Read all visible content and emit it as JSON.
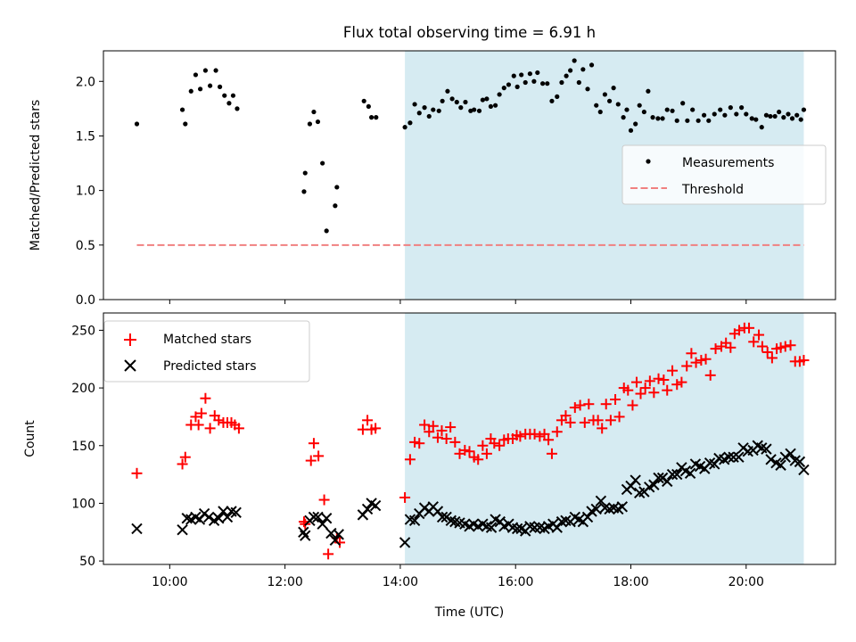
{
  "chart_data": [
    {
      "type": "scatter",
      "panel": "top",
      "title": "Flux total observing time = 6.91 h",
      "xlabel": "",
      "ylabel": "Matched/Predicted stars",
      "xlim": [
        8.85,
        21.55
      ],
      "ylim": [
        0,
        2.28
      ],
      "yticks": [
        0.0,
        0.5,
        1.0,
        1.5,
        2.0
      ],
      "ytick_labels": [
        "0.0",
        "0.5",
        "1.0",
        "1.5",
        "2.0"
      ],
      "shaded_interval": [
        14.08,
        21.0
      ],
      "legend": {
        "position": "right",
        "entries": [
          "Measurements",
          "Threshold"
        ]
      },
      "threshold": {
        "name": "Threshold",
        "value": 0.5,
        "x_range": [
          9.43,
          21.0
        ],
        "color": "#f08080"
      },
      "series": [
        {
          "name": "Measurements",
          "color": "#000000",
          "x": [
            9.43,
            10.22,
            10.27,
            10.37,
            10.45,
            10.53,
            10.62,
            10.7,
            10.8,
            10.87,
            10.95,
            11.03,
            11.1,
            11.17,
            12.33,
            12.35,
            12.43,
            12.5,
            12.57,
            12.65,
            12.72,
            12.87,
            12.9,
            13.37,
            13.45,
            13.5,
            13.58,
            14.08,
            14.17,
            14.25,
            14.33,
            14.42,
            14.5,
            14.57,
            14.67,
            14.73,
            14.82,
            14.9,
            14.98,
            15.05,
            15.13,
            15.22,
            15.28,
            15.37,
            15.43,
            15.5,
            15.57,
            15.65,
            15.72,
            15.8,
            15.88,
            15.97,
            16.03,
            16.1,
            16.17,
            16.25,
            16.32,
            16.38,
            16.47,
            16.55,
            16.63,
            16.72,
            16.8,
            16.88,
            16.95,
            17.02,
            17.1,
            17.17,
            17.25,
            17.32,
            17.4,
            17.47,
            17.55,
            17.63,
            17.7,
            17.78,
            17.87,
            17.93,
            18.0,
            18.08,
            18.15,
            18.23,
            18.3,
            18.38,
            18.47,
            18.55,
            18.63,
            18.72,
            18.8,
            18.9,
            18.98,
            19.07,
            19.17,
            19.27,
            19.35,
            19.45,
            19.55,
            19.63,
            19.73,
            19.83,
            19.92,
            20.0,
            20.1,
            20.17,
            20.27,
            20.35,
            20.42,
            20.5,
            20.57,
            20.65,
            20.73,
            20.8,
            20.88,
            20.95,
            21.0
          ],
          "y": [
            1.61,
            1.74,
            1.61,
            1.91,
            2.06,
            1.93,
            2.1,
            1.96,
            2.1,
            1.95,
            1.87,
            1.8,
            1.87,
            1.75,
            0.99,
            1.16,
            1.61,
            1.72,
            1.63,
            1.25,
            0.63,
            0.86,
            1.03,
            1.82,
            1.77,
            1.67,
            1.67,
            1.58,
            1.62,
            1.79,
            1.71,
            1.76,
            1.68,
            1.74,
            1.73,
            1.82,
            1.91,
            1.84,
            1.81,
            1.76,
            1.81,
            1.73,
            1.74,
            1.73,
            1.83,
            1.84,
            1.77,
            1.78,
            1.88,
            1.94,
            1.97,
            2.05,
            1.95,
            2.06,
            1.99,
            2.07,
            2.0,
            2.08,
            1.98,
            1.98,
            1.82,
            1.86,
            1.99,
            2.05,
            2.1,
            2.19,
            1.99,
            2.11,
            1.93,
            2.15,
            1.78,
            1.72,
            1.88,
            1.82,
            1.94,
            1.79,
            1.67,
            1.74,
            1.55,
            1.61,
            1.78,
            1.72,
            1.91,
            1.67,
            1.66,
            1.66,
            1.74,
            1.73,
            1.64,
            1.8,
            1.64,
            1.74,
            1.64,
            1.69,
            1.64,
            1.7,
            1.74,
            1.69,
            1.76,
            1.7,
            1.76,
            1.7,
            1.66,
            1.65,
            1.58,
            1.69,
            1.68,
            1.68,
            1.72,
            1.67,
            1.7,
            1.66,
            1.69,
            1.65,
            1.74
          ]
        }
      ]
    },
    {
      "type": "scatter",
      "panel": "bottom",
      "title": "",
      "xlabel": "Time (UTC)",
      "ylabel": "Count",
      "xlim": [
        8.85,
        21.55
      ],
      "ylim": [
        47,
        265
      ],
      "xticks": [
        10,
        12,
        14,
        16,
        18,
        20
      ],
      "xtick_labels": [
        "10:00",
        "12:00",
        "14:00",
        "16:00",
        "18:00",
        "20:00"
      ],
      "yticks": [
        50,
        100,
        150,
        200,
        250
      ],
      "ytick_labels": [
        "50",
        "100",
        "150",
        "200",
        "250"
      ],
      "shaded_interval": [
        14.08,
        21.0
      ],
      "legend": {
        "position": "top-left",
        "entries": [
          "Matched stars",
          "Predicted stars"
        ]
      },
      "series": [
        {
          "name": "Matched stars",
          "marker": "+",
          "color": "#ff0000",
          "x": [
            9.43,
            10.22,
            10.27,
            10.37,
            10.45,
            10.5,
            10.55,
            10.62,
            10.7,
            10.78,
            10.85,
            10.93,
            11.0,
            11.07,
            11.13,
            11.2,
            12.33,
            12.35,
            12.45,
            12.5,
            12.58,
            12.68,
            12.75,
            12.9,
            12.95,
            13.35,
            13.43,
            13.5,
            13.57,
            14.08,
            14.17,
            14.25,
            14.33,
            14.42,
            14.5,
            14.57,
            14.65,
            14.72,
            14.8,
            14.87,
            14.95,
            15.03,
            15.12,
            15.2,
            15.28,
            15.35,
            15.43,
            15.5,
            15.57,
            15.63,
            15.72,
            15.8,
            15.87,
            15.95,
            16.02,
            16.08,
            16.17,
            16.25,
            16.33,
            16.42,
            16.5,
            16.57,
            16.63,
            16.72,
            16.8,
            16.87,
            16.95,
            17.03,
            17.12,
            17.2,
            17.27,
            17.35,
            17.43,
            17.5,
            17.57,
            17.65,
            17.73,
            17.8,
            17.88,
            17.95,
            18.03,
            18.1,
            18.17,
            18.25,
            18.33,
            18.4,
            18.48,
            18.57,
            18.63,
            18.72,
            18.8,
            18.88,
            18.97,
            19.05,
            19.13,
            19.22,
            19.3,
            19.38,
            19.47,
            19.57,
            19.65,
            19.73,
            19.8,
            19.88,
            19.97,
            20.05,
            20.13,
            20.22,
            20.28,
            20.37,
            20.45,
            20.53,
            20.6,
            20.68,
            20.77,
            20.85,
            20.93,
            21.0
          ],
          "y": [
            126,
            134,
            140,
            168,
            175,
            168,
            178,
            191,
            165,
            176,
            172,
            170,
            170,
            170,
            168,
            165,
            84,
            82,
            137,
            152,
            141,
            103,
            56,
            70,
            66,
            164,
            172,
            164,
            165,
            105,
            138,
            153,
            152,
            168,
            162,
            167,
            157,
            163,
            156,
            166,
            153,
            143,
            146,
            145,
            140,
            138,
            150,
            143,
            156,
            152,
            150,
            155,
            156,
            156,
            159,
            158,
            160,
            160,
            160,
            158,
            160,
            155,
            143,
            162,
            172,
            176,
            170,
            183,
            185,
            170,
            186,
            172,
            172,
            165,
            186,
            172,
            190,
            175,
            200,
            198,
            185,
            205,
            195,
            200,
            206,
            196,
            208,
            207,
            198,
            215,
            203,
            205,
            219,
            230,
            222,
            224,
            225,
            211,
            234,
            236,
            239,
            235,
            247,
            250,
            252,
            252,
            240,
            246,
            236,
            231,
            226,
            234,
            235,
            236,
            237,
            223,
            223,
            224
          ],
          "clip_note": ""
        },
        {
          "name": "Predicted stars",
          "marker": "x",
          "color": "#000000",
          "x": [
            9.43,
            10.22,
            10.3,
            10.37,
            10.45,
            10.52,
            10.6,
            10.68,
            10.77,
            10.85,
            10.93,
            11.0,
            11.07,
            11.15,
            12.32,
            12.35,
            12.43,
            12.5,
            12.57,
            12.65,
            12.72,
            12.8,
            12.87,
            12.93,
            13.35,
            13.43,
            13.5,
            13.57,
            14.08,
            14.17,
            14.25,
            14.33,
            14.42,
            14.5,
            14.57,
            14.65,
            14.73,
            14.8,
            14.88,
            14.95,
            15.03,
            15.12,
            15.2,
            15.27,
            15.35,
            15.43,
            15.5,
            15.58,
            15.65,
            15.73,
            15.8,
            15.88,
            15.95,
            16.03,
            16.1,
            16.17,
            16.25,
            16.33,
            16.42,
            16.5,
            16.57,
            16.65,
            16.72,
            16.8,
            16.87,
            16.95,
            17.03,
            17.1,
            17.17,
            17.25,
            17.32,
            17.4,
            17.48,
            17.55,
            17.63,
            17.7,
            17.78,
            17.85,
            17.93,
            18.0,
            18.08,
            18.15,
            18.23,
            18.32,
            18.4,
            18.48,
            18.55,
            18.63,
            18.72,
            18.8,
            18.88,
            18.95,
            19.03,
            19.12,
            19.2,
            19.28,
            19.37,
            19.45,
            19.53,
            19.62,
            19.7,
            19.78,
            19.87,
            19.95,
            20.03,
            20.12,
            20.2,
            20.27,
            20.35,
            20.43,
            20.52,
            20.6,
            20.68,
            20.77,
            20.85,
            20.93,
            21.0
          ],
          "y": [
            78,
            77,
            87,
            86,
            88,
            86,
            91,
            88,
            85,
            87,
            93,
            88,
            93,
            92,
            75,
            72,
            85,
            88,
            88,
            82,
            87,
            74,
            68,
            73,
            90,
            95,
            100,
            98,
            66,
            86,
            85,
            91,
            96,
            93,
            97,
            93,
            88,
            88,
            85,
            84,
            83,
            82,
            80,
            82,
            80,
            82,
            80,
            79,
            86,
            84,
            80,
            82,
            79,
            78,
            78,
            76,
            80,
            79,
            79,
            78,
            80,
            82,
            79,
            84,
            85,
            84,
            88,
            86,
            84,
            88,
            93,
            95,
            102,
            96,
            95,
            96,
            95,
            97,
            112,
            115,
            120,
            109,
            110,
            114,
            116,
            122,
            122,
            119,
            125,
            125,
            131,
            128,
            126,
            134,
            132,
            130,
            135,
            134,
            139,
            138,
            140,
            140,
            140,
            148,
            145,
            146,
            150,
            148,
            147,
            138,
            135,
            133,
            140,
            143,
            137,
            136,
            129
          ]
        }
      ]
    }
  ]
}
